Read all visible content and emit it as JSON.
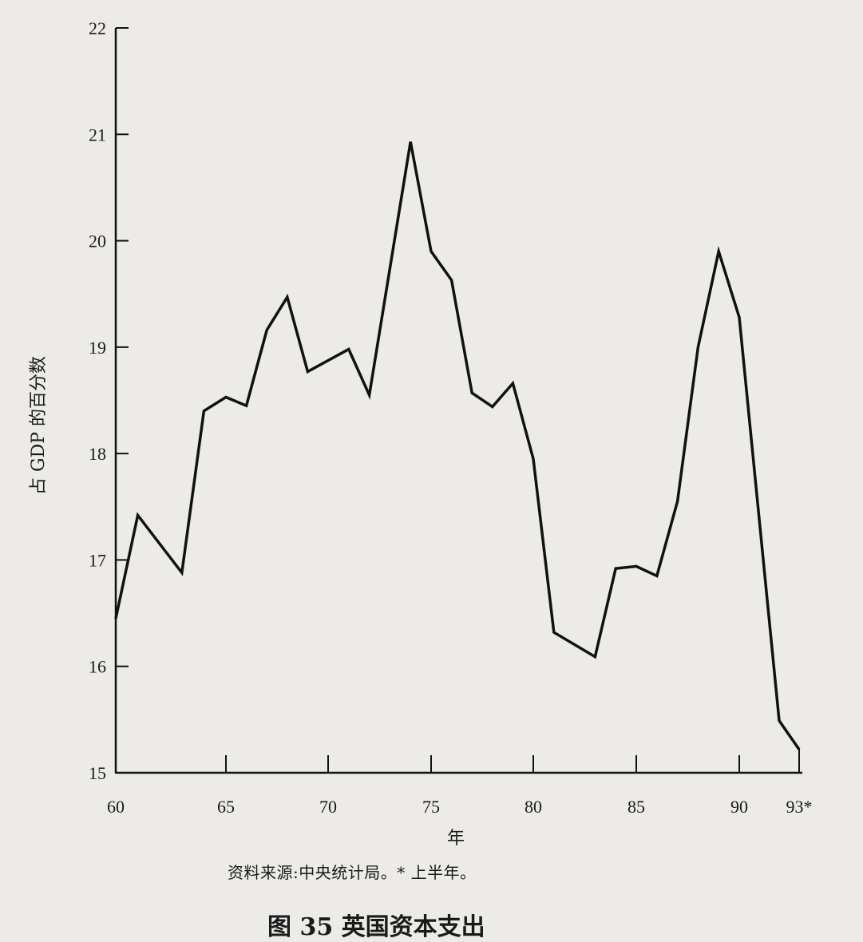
{
  "chart_data": {
    "type": "line",
    "title": "",
    "caption": "图 35 英国资本支出",
    "xlabel": "年",
    "ylabel": "占 GDP 的百分数",
    "source_note": "资料来源:中央统计局。* 上半年。",
    "ylim": [
      15,
      22
    ],
    "xlim": [
      60,
      93
    ],
    "y_ticks": [
      "15",
      "16",
      "17",
      "18",
      "19",
      "20",
      "21",
      "22"
    ],
    "x_ticks": [
      {
        "value": 60,
        "label": "60"
      },
      {
        "value": 65,
        "label": "65"
      },
      {
        "value": 70,
        "label": "70"
      },
      {
        "value": 75,
        "label": "75"
      },
      {
        "value": 80,
        "label": "80"
      },
      {
        "value": 85,
        "label": "85"
      },
      {
        "value": 90,
        "label": "90"
      },
      {
        "value": 93,
        "label": "93*"
      }
    ],
    "grid": false,
    "series": [
      {
        "color": "#111111",
        "points": [
          [
            60,
            16.45
          ],
          [
            61,
            17.42
          ],
          [
            63,
            16.88
          ],
          [
            64,
            18.4
          ],
          [
            65,
            18.53
          ],
          [
            66,
            18.45
          ],
          [
            67,
            19.16
          ],
          [
            68,
            19.47
          ],
          [
            69,
            18.77
          ],
          [
            71,
            18.98
          ],
          [
            72,
            18.55
          ],
          [
            74,
            20.93
          ],
          [
            75,
            19.9
          ],
          [
            76,
            19.63
          ],
          [
            77,
            18.57
          ],
          [
            78,
            18.44
          ],
          [
            79,
            18.66
          ],
          [
            80,
            17.95
          ],
          [
            81,
            16.32
          ],
          [
            83,
            16.09
          ],
          [
            84,
            16.92
          ],
          [
            85,
            16.94
          ],
          [
            86,
            16.85
          ],
          [
            87,
            17.55
          ],
          [
            88,
            19.0
          ],
          [
            89,
            19.9
          ],
          [
            90,
            19.28
          ],
          [
            92,
            15.49
          ],
          [
            93,
            15.22
          ]
        ]
      }
    ]
  }
}
